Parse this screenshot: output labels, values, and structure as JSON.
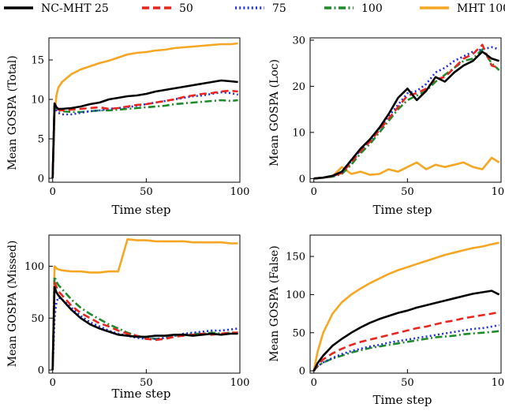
{
  "legend": [
    {
      "label": "NC-MHT 25",
      "color": "#000000",
      "dash": "solid"
    },
    {
      "label": "50",
      "color": "#e8261f",
      "dash": "dashed"
    },
    {
      "label": "75",
      "color": "#1f2ee0",
      "dash": "dotted"
    },
    {
      "label": "100",
      "color": "#1f8a2a",
      "dash": "dashdot"
    },
    {
      "label": "MHT 100",
      "color": "#f5a623",
      "dash": "solid"
    }
  ],
  "chart_data": [
    {
      "type": "line",
      "title": "",
      "xlabel": "Time step",
      "ylabel": "Mean GOSPA (Total)",
      "xlim": [
        -2,
        100
      ],
      "ylim": [
        -0.5,
        17.8
      ],
      "xticks": [
        0,
        50,
        100
      ],
      "yticks": [
        0,
        5,
        10,
        15
      ],
      "x": [
        0,
        1,
        2,
        3,
        5,
        10,
        15,
        20,
        25,
        30,
        35,
        40,
        45,
        50,
        55,
        60,
        65,
        70,
        75,
        80,
        85,
        90,
        95,
        99
      ],
      "series": [
        {
          "name": "NC-MHT 25",
          "values": [
            0,
            9.5,
            9.0,
            8.8,
            8.8,
            8.9,
            9.1,
            9.4,
            9.6,
            10.0,
            10.2,
            10.4,
            10.5,
            10.7,
            11.0,
            11.2,
            11.4,
            11.6,
            11.8,
            12.0,
            12.2,
            12.4,
            12.3,
            12.2
          ]
        },
        {
          "name": "50",
          "values": [
            0,
            9.2,
            8.9,
            8.7,
            8.6,
            8.7,
            8.8,
            8.9,
            9.0,
            8.8,
            8.9,
            9.1,
            9.3,
            9.4,
            9.6,
            9.8,
            10.0,
            10.3,
            10.5,
            10.7,
            10.8,
            11.0,
            11.1,
            11.0
          ]
        },
        {
          "name": "75",
          "values": [
            0,
            9.0,
            8.6,
            8.3,
            8.1,
            8.1,
            8.3,
            8.5,
            8.6,
            8.8,
            8.9,
            9.0,
            9.2,
            9.4,
            9.6,
            9.8,
            10.0,
            10.2,
            10.4,
            10.5,
            10.7,
            10.9,
            10.8,
            10.6
          ]
        },
        {
          "name": "100",
          "values": [
            0,
            9.3,
            8.8,
            8.6,
            8.5,
            8.4,
            8.4,
            8.5,
            8.6,
            8.6,
            8.7,
            8.8,
            8.9,
            9.0,
            9.1,
            9.2,
            9.4,
            9.5,
            9.6,
            9.7,
            9.8,
            9.9,
            9.8,
            9.9
          ]
        },
        {
          "name": "MHT 100",
          "values": [
            0,
            8.0,
            10.5,
            11.5,
            12.2,
            13.2,
            13.8,
            14.2,
            14.6,
            14.9,
            15.3,
            15.7,
            15.9,
            16.0,
            16.2,
            16.3,
            16.5,
            16.6,
            16.7,
            16.8,
            16.9,
            17.0,
            17.0,
            17.1
          ]
        }
      ]
    },
    {
      "type": "line",
      "title": "",
      "xlabel": "Time step",
      "ylabel": "Mean GOSPA (Loc)",
      "xlim": [
        -2,
        100
      ],
      "ylim": [
        -0.8,
        30.5
      ],
      "xticks": [
        0,
        50,
        100
      ],
      "yticks": [
        0,
        10,
        20,
        30
      ],
      "x": [
        0,
        5,
        10,
        15,
        20,
        25,
        30,
        35,
        40,
        45,
        50,
        55,
        60,
        65,
        70,
        75,
        80,
        85,
        90,
        95,
        99
      ],
      "series": [
        {
          "name": "NC-MHT 25",
          "values": [
            0,
            0.2,
            0.6,
            1.5,
            4.0,
            6.5,
            8.5,
            11.0,
            14.0,
            17.5,
            19.5,
            17.0,
            19.0,
            22.0,
            21.0,
            23.0,
            24.5,
            25.5,
            27.5,
            26.0,
            25.5
          ]
        },
        {
          "name": "50",
          "values": [
            0,
            0.2,
            0.5,
            1.2,
            3.5,
            6.0,
            8.0,
            10.5,
            13.0,
            15.5,
            18.0,
            18.5,
            19.5,
            21.5,
            22.0,
            24.0,
            26.0,
            27.0,
            29.0,
            24.5,
            24.0
          ]
        },
        {
          "name": "75",
          "values": [
            0,
            0.2,
            0.5,
            1.3,
            3.8,
            6.2,
            8.2,
            10.8,
            13.5,
            16.0,
            18.5,
            19.0,
            20.5,
            23.0,
            24.0,
            25.5,
            26.5,
            27.5,
            28.0,
            28.5,
            28.0
          ]
        },
        {
          "name": "100",
          "values": [
            0,
            0.2,
            0.4,
            1.0,
            3.0,
            5.5,
            7.5,
            10.0,
            12.5,
            15.0,
            17.0,
            18.0,
            19.0,
            21.0,
            22.5,
            24.0,
            25.5,
            26.0,
            28.0,
            25.0,
            23.5
          ]
        },
        {
          "name": "MHT 100",
          "values": [
            0,
            0.2,
            0.5,
            2.5,
            1.0,
            1.5,
            0.8,
            1.0,
            2.0,
            1.5,
            2.5,
            3.5,
            2.0,
            3.0,
            2.5,
            3.0,
            3.5,
            2.5,
            2.0,
            4.5,
            3.5
          ]
        }
      ]
    },
    {
      "type": "line",
      "title": "",
      "xlabel": "Time step",
      "ylabel": "Mean GOSPA (Missed)",
      "xlim": [
        -2,
        100
      ],
      "ylim": [
        -3,
        130
      ],
      "xticks": [
        0,
        50,
        100
      ],
      "yticks": [
        0,
        50,
        100
      ],
      "x": [
        0,
        1,
        2,
        3,
        5,
        10,
        15,
        20,
        25,
        30,
        35,
        40,
        45,
        50,
        55,
        60,
        65,
        70,
        75,
        80,
        85,
        90,
        95,
        99
      ],
      "series": [
        {
          "name": "NC-MHT 25",
          "values": [
            0,
            80,
            75,
            72,
            68,
            58,
            50,
            44,
            40,
            37,
            34,
            33,
            32,
            32,
            33,
            33,
            34,
            34,
            33,
            34,
            35,
            34,
            35,
            35
          ]
        },
        {
          "name": "50",
          "values": [
            0,
            85,
            80,
            76,
            72,
            62,
            55,
            50,
            45,
            42,
            38,
            35,
            33,
            30,
            29,
            30,
            32,
            33,
            34,
            35,
            34,
            35,
            36,
            36
          ]
        },
        {
          "name": "75",
          "values": [
            0,
            50,
            65,
            70,
            68,
            60,
            52,
            46,
            42,
            38,
            35,
            33,
            31,
            30,
            30,
            31,
            33,
            35,
            36,
            37,
            38,
            38,
            39,
            40
          ]
        },
        {
          "name": "100",
          "values": [
            0,
            90,
            85,
            82,
            78,
            68,
            60,
            54,
            49,
            44,
            40,
            36,
            33,
            31,
            30,
            31,
            33,
            34,
            35,
            35,
            36,
            35,
            36,
            36
          ]
        },
        {
          "name": "MHT 100",
          "values": [
            0,
            100,
            98,
            97,
            96,
            95,
            95,
            94,
            94,
            95,
            95,
            126,
            125,
            125,
            124,
            124,
            124,
            124,
            123,
            123,
            123,
            123,
            122,
            122
          ]
        }
      ]
    },
    {
      "type": "line",
      "title": "",
      "xlabel": "Time step",
      "ylabel": "Mean GOSPA (False)",
      "xlim": [
        -2,
        100
      ],
      "ylim": [
        -3,
        178
      ],
      "xticks": [
        0,
        50,
        100
      ],
      "yticks": [
        0,
        50,
        100,
        150
      ],
      "x": [
        0,
        2,
        5,
        10,
        15,
        20,
        25,
        30,
        35,
        40,
        45,
        50,
        55,
        60,
        65,
        70,
        75,
        80,
        85,
        90,
        95,
        99
      ],
      "series": [
        {
          "name": "NC-MHT 25",
          "values": [
            0,
            10,
            20,
            33,
            42,
            50,
            57,
            63,
            68,
            72,
            76,
            79,
            83,
            86,
            89,
            92,
            95,
            98,
            101,
            103,
            105,
            100
          ]
        },
        {
          "name": "50",
          "values": [
            0,
            8,
            15,
            23,
            29,
            34,
            38,
            41,
            44,
            47,
            50,
            53,
            56,
            58,
            61,
            64,
            66,
            69,
            71,
            73,
            75,
            77
          ]
        },
        {
          "name": "75",
          "values": [
            0,
            6,
            11,
            17,
            22,
            26,
            29,
            32,
            34,
            37,
            39,
            41,
            43,
            45,
            47,
            49,
            51,
            53,
            55,
            56,
            58,
            60
          ]
        },
        {
          "name": "100",
          "values": [
            0,
            6,
            11,
            16,
            20,
            24,
            27,
            30,
            32,
            34,
            36,
            38,
            40,
            42,
            44,
            45,
            46,
            48,
            49,
            50,
            51,
            52
          ]
        },
        {
          "name": "MHT 100",
          "values": [
            0,
            25,
            50,
            75,
            90,
            100,
            108,
            115,
            121,
            127,
            132,
            136,
            140,
            144,
            148,
            152,
            155,
            158,
            161,
            163,
            166,
            168
          ]
        }
      ]
    }
  ]
}
